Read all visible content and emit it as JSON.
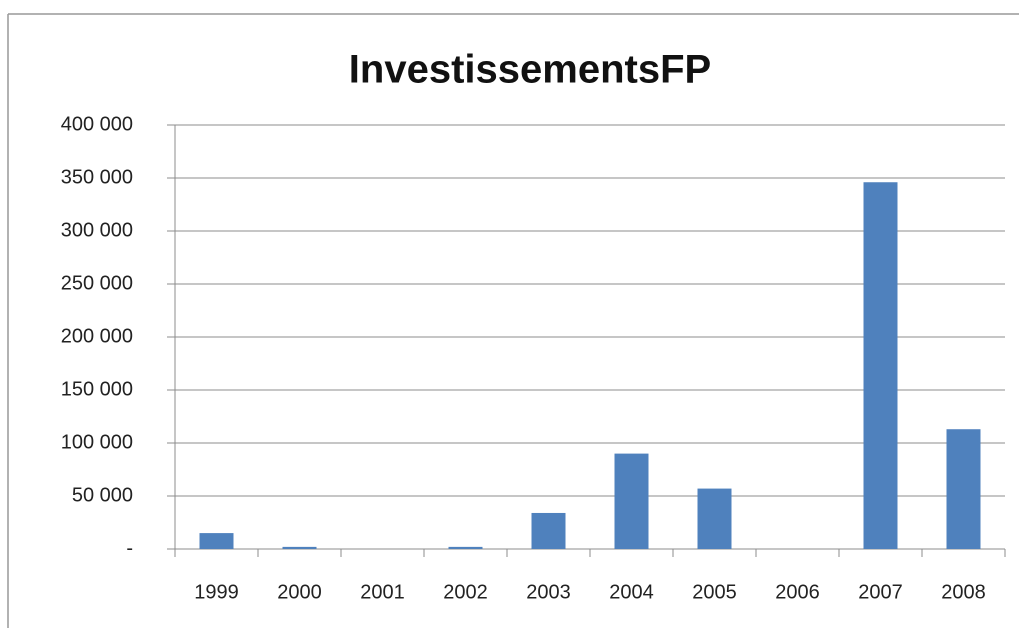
{
  "chart_data": {
    "type": "bar",
    "title": "InvestissementsFP",
    "categories": [
      "1999",
      "2000",
      "2001",
      "2002",
      "2003",
      "2004",
      "2005",
      "2006",
      "2007",
      "2008"
    ],
    "values": [
      15000,
      2000,
      0,
      2000,
      34000,
      90000,
      57000,
      0,
      346000,
      113000
    ],
    "color": "#4f81bd",
    "ylim": [
      0,
      400000
    ],
    "yticks": [
      {
        "value": 0,
        "label": "-"
      },
      {
        "value": 50000,
        "label": "50 000"
      },
      {
        "value": 100000,
        "label": "100 000"
      },
      {
        "value": 150000,
        "label": "150 000"
      },
      {
        "value": 200000,
        "label": "200 000"
      },
      {
        "value": 250000,
        "label": "250 000"
      },
      {
        "value": 300000,
        "label": "300 000"
      },
      {
        "value": 350000,
        "label": "350 000"
      },
      {
        "value": 400000,
        "label": "400 000"
      }
    ],
    "grid": true
  }
}
